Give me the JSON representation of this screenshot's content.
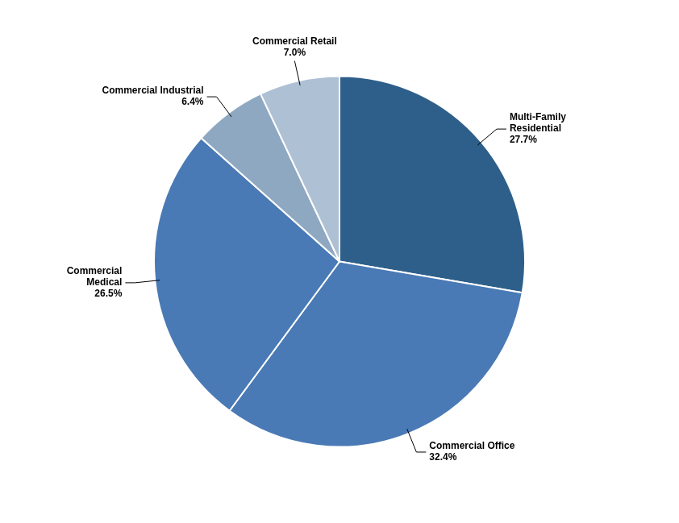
{
  "chart_data": {
    "type": "pie",
    "categories": [
      "Multi-Family\nResidential\n27.7%",
      "Commercial Office\n32.4%",
      "Commercial\nMedical\n26.5%",
      "Commercial Industrial\n6.4%",
      "Commercial Retail\n7.0%"
    ],
    "values": [
      27.7,
      32.4,
      26.5,
      6.4,
      7.0
    ],
    "colors": [
      "#2e5f8a",
      "#4a7ab5",
      "#4a7ab5",
      "#8fa8c2",
      "#aec0d4"
    ]
  }
}
